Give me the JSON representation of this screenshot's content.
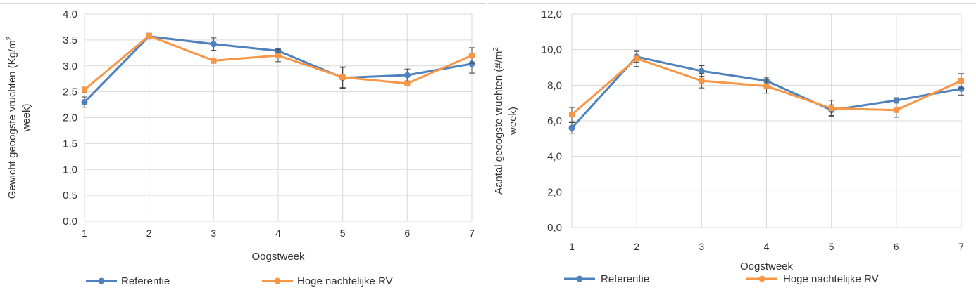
{
  "chart_data": [
    {
      "type": "line",
      "xlabel": "Oogstweek",
      "ylabel": "Gewicht geoogste vruchten (Kg/m² week)",
      "ylabel_lines": [
        "Gewicht geoogste vruchten (Kg/m",
        "2",
        "week)"
      ],
      "x": [
        1,
        2,
        3,
        4,
        5,
        6,
        7
      ],
      "xlim": [
        1,
        7
      ],
      "ylim": [
        0,
        4
      ],
      "yticks": [
        0,
        0.5,
        1,
        1.5,
        2,
        2.5,
        3,
        3.5,
        4
      ],
      "ytick_labels": [
        "0,0",
        "0,5",
        "1,0",
        "1,5",
        "2,0",
        "2,5",
        "3,0",
        "3,5",
        "4,0"
      ],
      "xtick_labels": [
        "1",
        "2",
        "3",
        "4",
        "5",
        "6",
        "7"
      ],
      "grid": true,
      "legend": "bottom",
      "series": [
        {
          "name": "Referentie",
          "color": "#4f81bd",
          "marker": "circle",
          "values": [
            2.3,
            3.57,
            3.42,
            3.29,
            2.77,
            2.82,
            3.04
          ],
          "errors": [
            0.1,
            0.05,
            0.12,
            0.05,
            0.2,
            0.12,
            0.18
          ]
        },
        {
          "name": "Hoge nachtelijke RV",
          "color": "#f79646",
          "marker": "square",
          "values": [
            2.54,
            3.58,
            3.1,
            3.2,
            2.78,
            2.66,
            3.2
          ],
          "errors": [
            0.05,
            0.05,
            0.05,
            0.12,
            0.2,
            0.05,
            0.15
          ]
        }
      ]
    },
    {
      "type": "line",
      "xlabel": "Oogstweek",
      "ylabel": "Aantal geoogste vruchten (#/m² week)",
      "ylabel_lines": [
        "Aantal geoogste vruchten (#/m",
        "2",
        "week)"
      ],
      "x": [
        1,
        2,
        3,
        4,
        5,
        6,
        7
      ],
      "xlim": [
        1,
        7
      ],
      "ylim": [
        0,
        12
      ],
      "yticks": [
        0,
        2,
        4,
        6,
        8,
        10,
        12
      ],
      "ytick_labels": [
        "0,0",
        "2,0",
        "4,0",
        "6,0",
        "8,0",
        "10,0",
        "12,0"
      ],
      "xtick_labels": [
        "1",
        "2",
        "3",
        "4",
        "5",
        "6",
        "7"
      ],
      "grid": true,
      "legend": "bottom",
      "series": [
        {
          "name": "Referentie",
          "color": "#4f81bd",
          "marker": "circle",
          "values": [
            5.6,
            9.6,
            8.8,
            8.25,
            6.6,
            7.15,
            7.8
          ],
          "errors": [
            0.3,
            0.3,
            0.3,
            0.2,
            0.3,
            0.15,
            0.35
          ]
        },
        {
          "name": "Hoge nachtelijke RV",
          "color": "#f79646",
          "marker": "square",
          "values": [
            6.35,
            9.5,
            8.25,
            7.95,
            6.7,
            6.6,
            8.25
          ],
          "errors": [
            0.4,
            0.45,
            0.4,
            0.4,
            0.45,
            0.4,
            0.4
          ]
        }
      ]
    }
  ]
}
